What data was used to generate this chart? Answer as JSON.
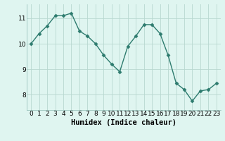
{
  "x": [
    0,
    1,
    2,
    3,
    4,
    5,
    6,
    7,
    8,
    9,
    10,
    11,
    12,
    13,
    14,
    15,
    16,
    17,
    18,
    19,
    20,
    21,
    22,
    23
  ],
  "y": [
    10.0,
    10.4,
    10.7,
    11.1,
    11.1,
    11.2,
    10.5,
    10.3,
    10.0,
    9.55,
    9.2,
    8.9,
    9.9,
    10.3,
    10.75,
    10.75,
    10.4,
    9.55,
    8.45,
    8.2,
    7.75,
    8.15,
    8.2,
    8.45
  ],
  "line_color": "#2d7b6e",
  "marker": "D",
  "marker_size": 2.5,
  "bg_color": "#dff5f0",
  "grid_color": "#b8d8d0",
  "xlabel": "Humidex (Indice chaleur)",
  "xlabel_fontsize": 7.5,
  "yticks": [
    8,
    9,
    10,
    11
  ],
  "xticks": [
    0,
    1,
    2,
    3,
    4,
    5,
    6,
    7,
    8,
    9,
    10,
    11,
    12,
    13,
    14,
    15,
    16,
    17,
    18,
    19,
    20,
    21,
    22,
    23
  ],
  "ylim": [
    7.4,
    11.55
  ],
  "xlim": [
    -0.5,
    23.5
  ],
  "tick_fontsize": 6.5,
  "line_width": 1.0
}
